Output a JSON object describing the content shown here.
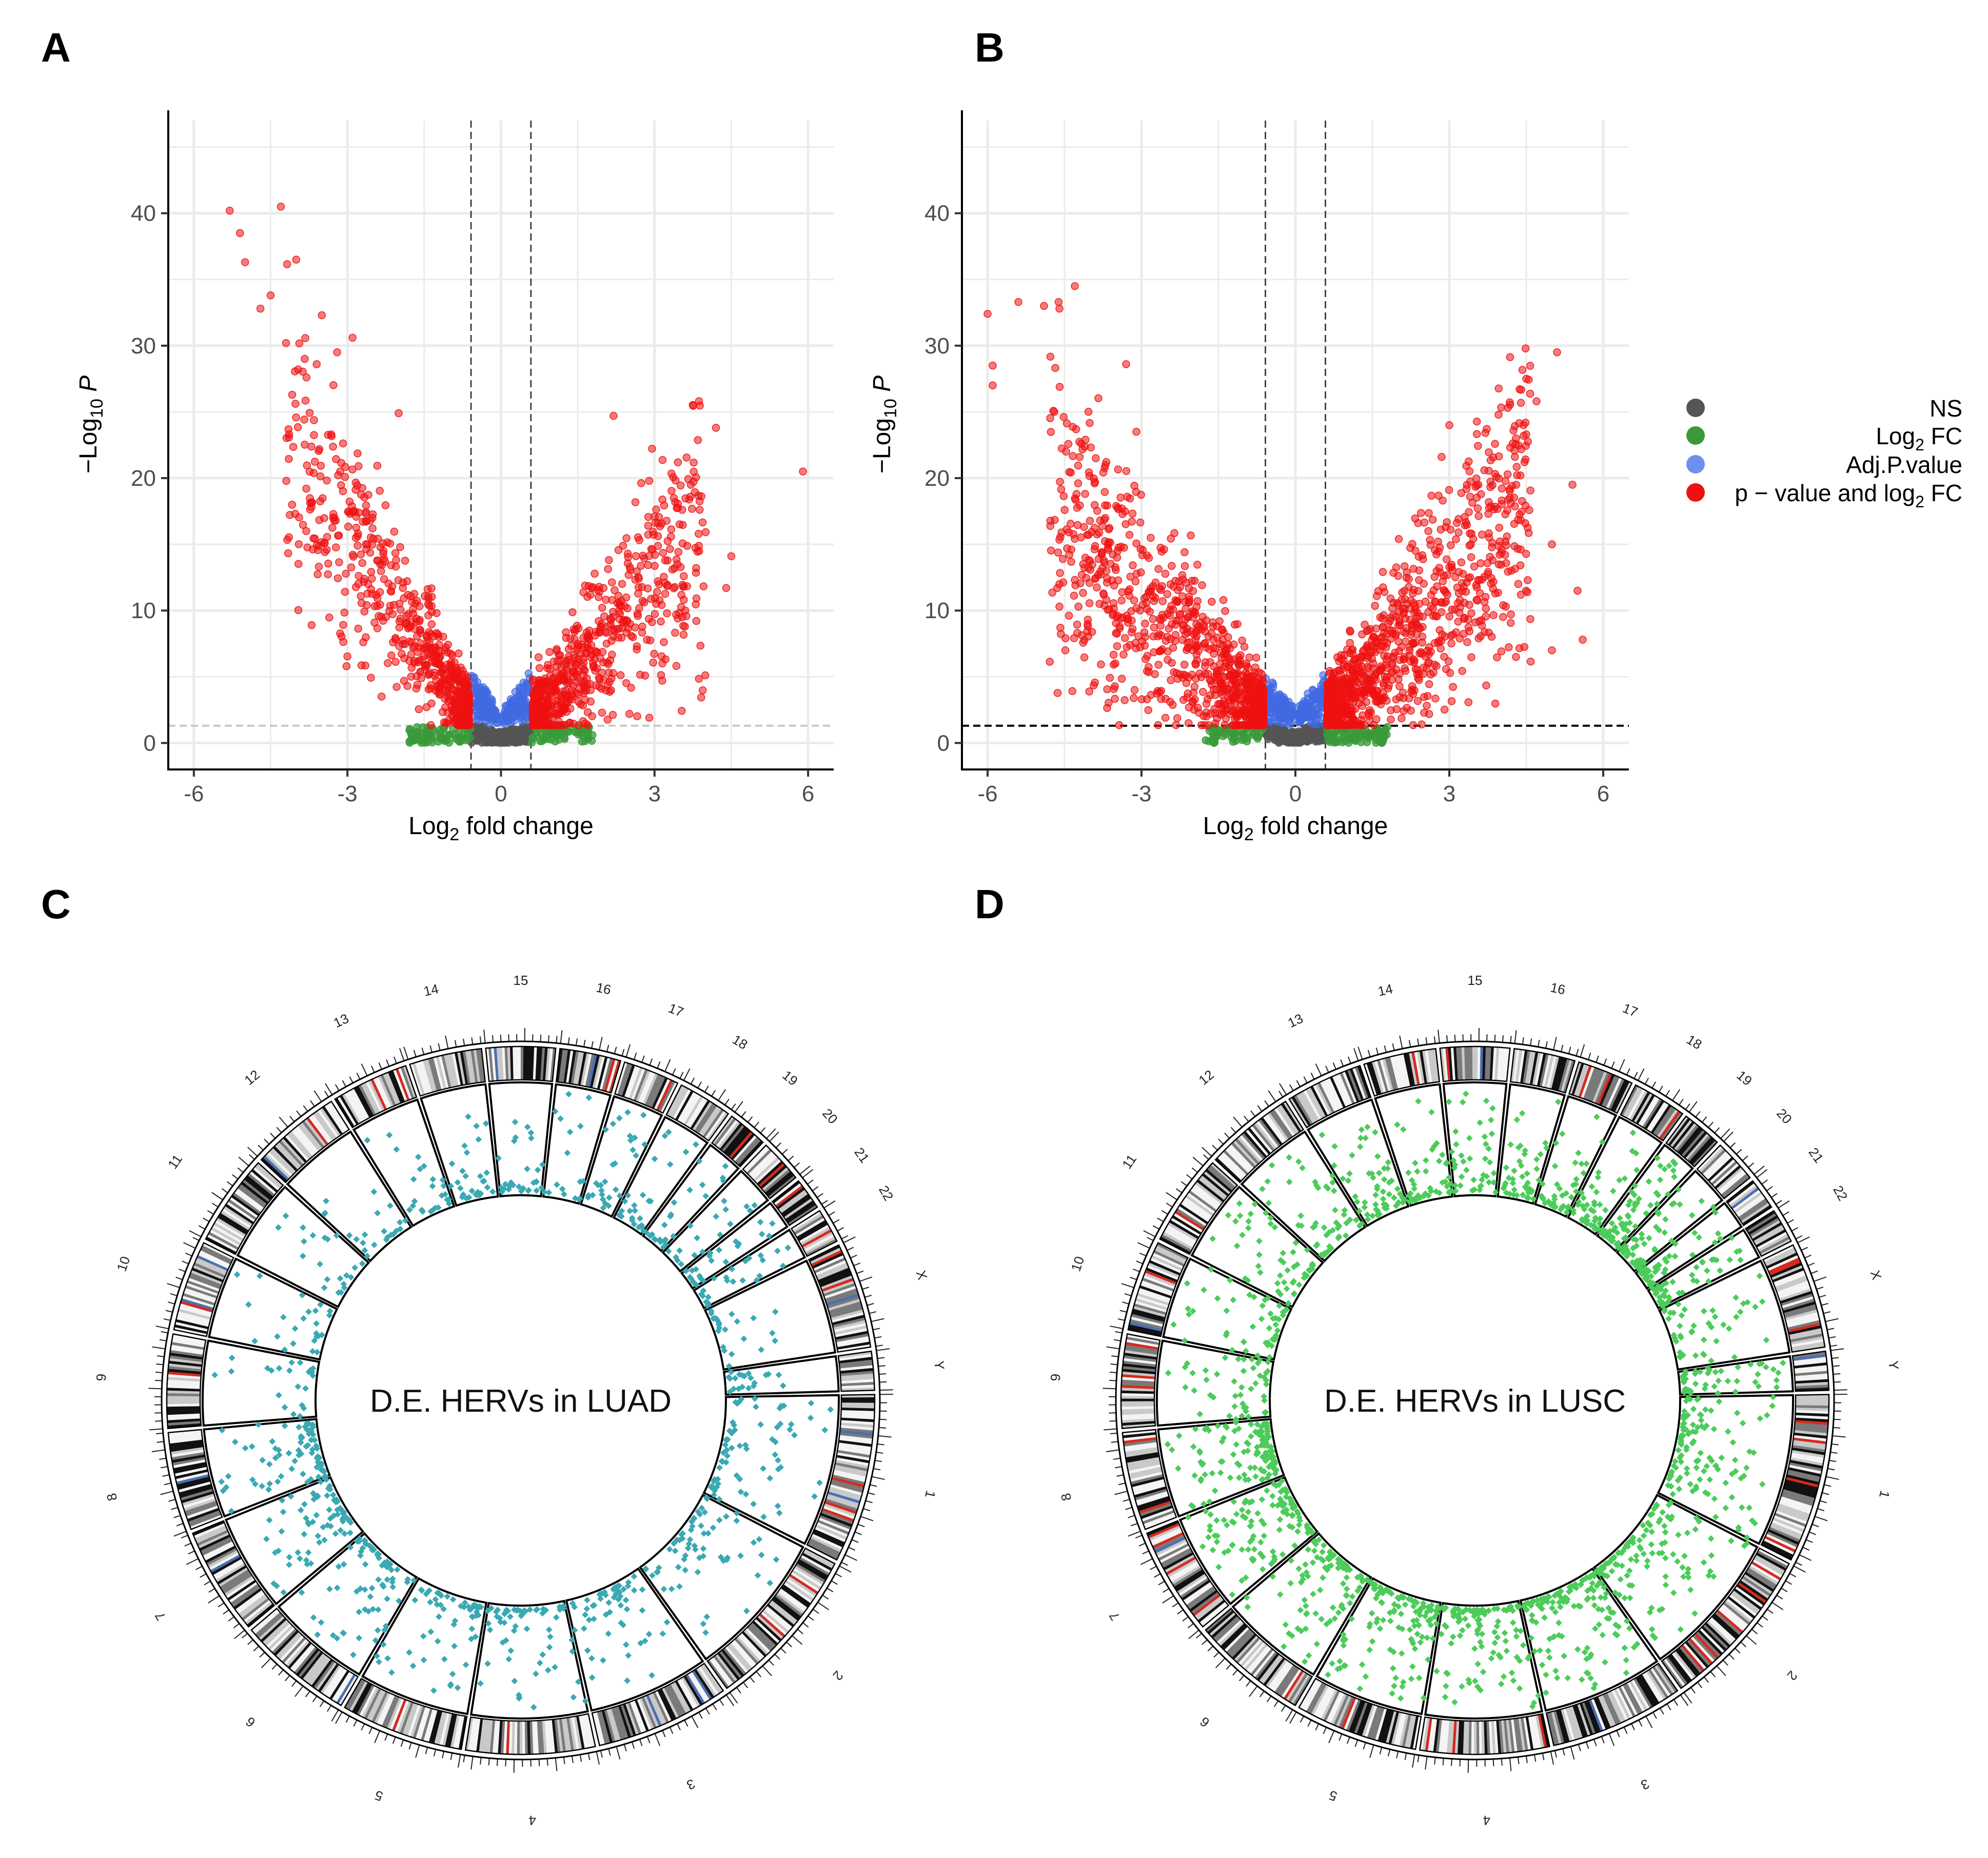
{
  "panels": {
    "a": "A",
    "b": "B",
    "c": "C",
    "d": "D"
  },
  "colors": {
    "ns": "#555555",
    "log2fc": "#3a9a3a",
    "adjp": "#4169e1",
    "both": "#ee1111",
    "luad": "#3aa9b3",
    "lusc": "#4ccc5a",
    "grid": "#ebebeb",
    "band_red": "#d62a20",
    "band_blue": "#4a6fb3"
  },
  "legend": {
    "ns": "NS",
    "log2fc_main": "Log",
    "log2fc_sub": "2",
    "log2fc_tail": " FC",
    "adjp": "Adj.P.value",
    "both_head": "p − value and log",
    "both_sub": "2",
    "both_tail": " FC"
  },
  "chart_data": [
    {
      "panel": "A",
      "type": "scatter",
      "subtype": "volcano",
      "xlabel_main": "Log",
      "xlabel_sub": "2",
      "xlabel_tail": " fold change",
      "ylabel_prefix": "−Log",
      "ylabel_sub": "10",
      "ylabel_var": "P",
      "xlim": [
        -6.5,
        6.5
      ],
      "ylim": [
        -2,
        47
      ],
      "xticks": [
        -6,
        -3,
        0,
        3,
        6
      ],
      "xtick_labels": [
        "-6",
        "-3",
        "0",
        "3",
        "6"
      ],
      "yticks": [
        0,
        10,
        20,
        30,
        40
      ],
      "ytick_labels": [
        "0",
        "10",
        "20",
        "30",
        "40"
      ],
      "fc_cutoff": 0.585,
      "p_cutoff": 1.3,
      "cutoff_line_style": "light-grey-dashed",
      "highlighted_points": [
        {
          "x": -5.3,
          "y": 40.2
        },
        {
          "x": -4.3,
          "y": 40.5
        },
        {
          "x": -5.1,
          "y": 38.5
        },
        {
          "x": -4.0,
          "y": 36.5
        },
        {
          "x": -5.0,
          "y": 36.3
        },
        {
          "x": -4.5,
          "y": 33.8
        },
        {
          "x": -4.7,
          "y": 32.8
        },
        {
          "x": -3.5,
          "y": 32.3
        },
        {
          "x": -2.9,
          "y": 30.6
        },
        {
          "x": -4.2,
          "y": 30.2
        },
        {
          "x": -3.2,
          "y": 29.5
        },
        {
          "x": -3.6,
          "y": 28.6
        },
        {
          "x": -3.8,
          "y": 27.6
        },
        {
          "x": -2.0,
          "y": 24.9
        },
        {
          "x": 2.2,
          "y": 24.7
        },
        {
          "x": 4.2,
          "y": 23.8
        },
        {
          "x": 5.9,
          "y": 20.5
        },
        {
          "x": 3.0,
          "y": 17.1
        },
        {
          "x": 3.7,
          "y": 18.6
        },
        {
          "x": 4.5,
          "y": 14.1
        },
        {
          "x": 4.4,
          "y": 11.7
        },
        {
          "x": 3.2,
          "y": 12.1
        },
        {
          "x": 3.6,
          "y": 10.0
        },
        {
          "x": -3.7,
          "y": 8.9
        }
      ],
      "cloud": {
        "n_both": 1300,
        "n_adj": 220,
        "n_fc": 150,
        "n_ns": 260,
        "steep_left": 7.5,
        "steep_right": 5.5,
        "left_range": [
          -4.2,
          -0.62
        ],
        "right_range": [
          0.62,
          4.0
        ],
        "seed": 11
      }
    },
    {
      "panel": "B",
      "type": "scatter",
      "subtype": "volcano",
      "xlabel_main": "Log",
      "xlabel_sub": "2",
      "xlabel_tail": " fold change",
      "ylabel_prefix": "−Log",
      "ylabel_sub": "10",
      "ylabel_var": "P",
      "xlim": [
        -6.5,
        6.5
      ],
      "ylim": [
        -2,
        47
      ],
      "xticks": [
        -6,
        -3,
        0,
        3,
        6
      ],
      "xtick_labels": [
        "-6",
        "-3",
        "0",
        "3",
        "6"
      ],
      "yticks": [
        0,
        10,
        20,
        30,
        40
      ],
      "ytick_labels": [
        "0",
        "10",
        "20",
        "30",
        "40"
      ],
      "fc_cutoff": 0.585,
      "p_cutoff": 1.3,
      "cutoff_line_style": "black-dashed",
      "highlighted_points": [
        {
          "x": -4.3,
          "y": 34.5
        },
        {
          "x": -5.4,
          "y": 33.3
        },
        {
          "x": -4.9,
          "y": 33.0
        },
        {
          "x": -6.0,
          "y": 32.4
        },
        {
          "x": -4.6,
          "y": 32.8
        },
        {
          "x": -5.9,
          "y": 28.5
        },
        {
          "x": -5.9,
          "y": 27.0
        },
        {
          "x": -3.3,
          "y": 28.6
        },
        {
          "x": -4.7,
          "y": 25.0
        },
        {
          "x": -3.1,
          "y": 23.5
        },
        {
          "x": -4.6,
          "y": 12.0
        },
        {
          "x": -4.6,
          "y": 10.3
        },
        {
          "x": 5.1,
          "y": 29.5
        },
        {
          "x": 4.5,
          "y": 27.5
        },
        {
          "x": 4.7,
          "y": 25.8
        },
        {
          "x": 3.0,
          "y": 24.0
        },
        {
          "x": 4.3,
          "y": 23.0
        },
        {
          "x": 4.5,
          "y": 23.3
        },
        {
          "x": 5.4,
          "y": 19.5
        },
        {
          "x": 5.0,
          "y": 15.0
        },
        {
          "x": 5.5,
          "y": 11.5
        },
        {
          "x": 5.6,
          "y": 7.8
        },
        {
          "x": 5.0,
          "y": 7.0
        },
        {
          "x": 4.3,
          "y": 6.5
        }
      ],
      "cloud": {
        "n_both": 1900,
        "n_adj": 220,
        "n_fc": 150,
        "n_ns": 260,
        "steep_left": 5.0,
        "steep_right": 5.5,
        "left_range": [
          -4.8,
          -0.62
        ],
        "right_range": [
          0.62,
          4.6
        ],
        "seed": 23
      }
    },
    {
      "panel": "C",
      "type": "scatter",
      "subtype": "circos",
      "center_label": "D.E. HERVs in LUAD",
      "chromosomes": [
        "1",
        "2",
        "3",
        "4",
        "5",
        "6",
        "7",
        "8",
        "9",
        "10",
        "11",
        "12",
        "13",
        "14",
        "15",
        "16",
        "17",
        "18",
        "19",
        "20",
        "21",
        "22",
        "X",
        "Y"
      ],
      "chrom_sizes_mb": [
        249,
        242,
        198,
        190,
        181,
        171,
        159,
        145,
        138,
        134,
        135,
        133,
        114,
        107,
        102,
        90,
        83,
        80,
        59,
        64,
        47,
        51,
        156,
        57
      ],
      "point_color": "luad",
      "n_points": 900,
      "seed": 31
    },
    {
      "panel": "D",
      "type": "scatter",
      "subtype": "circos",
      "center_label": "D.E. HERVs in LUSC",
      "chromosomes": [
        "1",
        "2",
        "3",
        "4",
        "5",
        "6",
        "7",
        "8",
        "9",
        "10",
        "11",
        "12",
        "13",
        "14",
        "15",
        "16",
        "17",
        "18",
        "19",
        "20",
        "21",
        "22",
        "X",
        "Y"
      ],
      "chrom_sizes_mb": [
        249,
        242,
        198,
        190,
        181,
        171,
        159,
        145,
        138,
        134,
        135,
        133,
        114,
        107,
        102,
        90,
        83,
        80,
        59,
        64,
        47,
        51,
        156,
        57
      ],
      "point_color": "lusc",
      "n_points": 1700,
      "seed": 47
    }
  ]
}
